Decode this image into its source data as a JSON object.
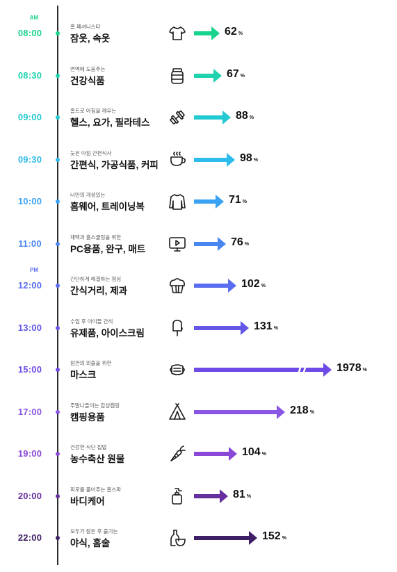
{
  "chart_data": {
    "type": "bar",
    "series": [
      {
        "name": "",
        "values": [
          62,
          67,
          88,
          98,
          71,
          76,
          102,
          131,
          1978,
          218,
          104,
          81,
          152
        ]
      }
    ],
    "value_unit": "%",
    "axis_break_on": "15:00",
    "rows": [
      {
        "ampm": "AM",
        "time": "08:00",
        "sub": "홈 패셔니스타",
        "category": "잠옷, 속옷",
        "value": 62,
        "icon": "tshirt-icon",
        "color": "#18d48c"
      },
      {
        "ampm": "",
        "time": "08:30",
        "sub": "면역에 도움주는",
        "category": "건강식품",
        "value": 67,
        "icon": "supplement-jar-icon",
        "color": "#1fd3ae"
      },
      {
        "ampm": "",
        "time": "09:00",
        "sub": "홈트로 아침을 깨우는",
        "category": "헬스, 요가, 필라테스",
        "value": 88,
        "icon": "dumbbell-icon",
        "color": "#23c9d2"
      },
      {
        "ampm": "",
        "time": "09:30",
        "sub": "늦은 아침 간편식사",
        "category": "간편식, 가공식품, 커피",
        "value": 98,
        "icon": "coffee-cup-icon",
        "color": "#2ebcec"
      },
      {
        "ampm": "",
        "time": "10:00",
        "sub": "나만의 개성있는",
        "category": "홈웨어, 트레이닝복",
        "value": 71,
        "icon": "sweatshirt-icon",
        "color": "#3aa2f2"
      },
      {
        "ampm": "",
        "time": "11:00",
        "sub": "재택과 홈스쿨링을 위한",
        "category": "PC용품, 완구, 매트",
        "value": 76,
        "icon": "monitor-icon",
        "color": "#4a86f0"
      },
      {
        "ampm": "PM",
        "time": "12:00",
        "sub": "간단하게 해결하는 점심",
        "category": "간식거리, 제과",
        "value": 102,
        "icon": "muffin-icon",
        "color": "#5a6cf0"
      },
      {
        "ampm": "",
        "time": "13:00",
        "sub": "수업 후 아이들 간식",
        "category": "유제품, 아이스크림",
        "value": 131,
        "icon": "ice-cream-icon",
        "color": "#6457e8"
      },
      {
        "ampm": "",
        "time": "15:00",
        "sub": "잠깐의 외출을 위한",
        "category": "마스크",
        "value": 1978,
        "icon": "mask-icon",
        "color": "#6e4ae6"
      },
      {
        "ampm": "",
        "time": "17:00",
        "sub": "주말나들이는 감성캠핑",
        "category": "캠핑용품",
        "value": 218,
        "icon": "tent-icon",
        "color": "#8a56e4"
      },
      {
        "ampm": "",
        "time": "19:00",
        "sub": "건강한 식단 집밥",
        "category": "농수축산 원물",
        "value": 104,
        "icon": "carrot-icon",
        "color": "#8a48d6"
      },
      {
        "ampm": "",
        "time": "20:00",
        "sub": "피로를 풀어주는 홈스파",
        "category": "바디케어",
        "value": 81,
        "icon": "pump-bottle-icon",
        "color": "#65309e"
      },
      {
        "ampm": "",
        "time": "22:00",
        "sub": "모두가 잠든 후 즐기는",
        "category": "야식, 홈술",
        "value": 152,
        "icon": "bottle-glass-icon",
        "color": "#3e1e66"
      }
    ]
  }
}
